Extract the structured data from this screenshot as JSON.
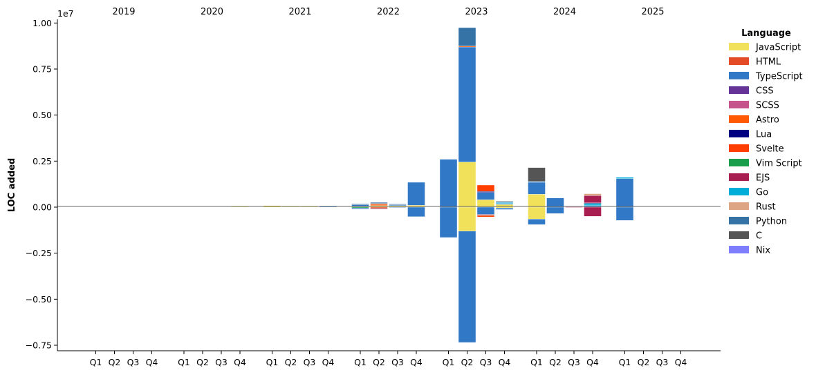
{
  "chart_data": {
    "type": "bar",
    "stacked": true,
    "ylabel": "LOC added",
    "y_offset_label": "1e7",
    "y_unit_multiplier": 10000000,
    "ylim": [
      -7.8,
      10.2
    ],
    "yticks": [
      -0.75,
      -0.5,
      -0.25,
      0.0,
      0.25,
      0.5,
      0.75,
      1.0
    ],
    "ytick_labels": [
      "−0.75",
      "−0.50",
      "−0.25",
      "0.00",
      "0.25",
      "0.50",
      "0.75",
      "1.00"
    ],
    "years": [
      "2019",
      "2020",
      "2021",
      "2022",
      "2023",
      "2024",
      "2025"
    ],
    "quarters": [
      "Q1",
      "Q2",
      "Q3",
      "Q4"
    ],
    "legend": {
      "title": "Language",
      "placement": "right",
      "entries": [
        {
          "name": "JavaScript",
          "color": "#f1e05a"
        },
        {
          "name": "HTML",
          "color": "#e34c26"
        },
        {
          "name": "TypeScript",
          "color": "#3178c6"
        },
        {
          "name": "CSS",
          "color": "#663399"
        },
        {
          "name": "SCSS",
          "color": "#c6538c"
        },
        {
          "name": "Astro",
          "color": "#ff5a03"
        },
        {
          "name": "Lua",
          "color": "#000080"
        },
        {
          "name": "Svelte",
          "color": "#ff3e00"
        },
        {
          "name": "Vim Script",
          "color": "#199f4b"
        },
        {
          "name": "EJS",
          "color": "#a91e50"
        },
        {
          "name": "Go",
          "color": "#00add8"
        },
        {
          "name": "Rust",
          "color": "#dea584"
        },
        {
          "name": "Python",
          "color": "#3572a5"
        },
        {
          "name": "C",
          "color": "#555555"
        },
        {
          "name": "Nix",
          "color": "#7e7eff"
        }
      ]
    },
    "units_note": "values are LOC in millions (axis shows 1e7 scale)",
    "bars": [
      {
        "year": "2020",
        "quarter": "Q4",
        "segments": [
          {
            "lang": "JavaScript",
            "value": 0.05
          }
        ]
      },
      {
        "year": "2021",
        "quarter": "Q1",
        "segments": [
          {
            "lang": "JavaScript",
            "value": 0.08
          }
        ]
      },
      {
        "year": "2021",
        "quarter": "Q2",
        "segments": [
          {
            "lang": "JavaScript",
            "value": 0.05
          }
        ]
      },
      {
        "year": "2021",
        "quarter": "Q3",
        "segments": [
          {
            "lang": "JavaScript",
            "value": 0.04
          }
        ]
      },
      {
        "year": "2021",
        "quarter": "Q4",
        "segments": [
          {
            "lang": "TypeScript",
            "value": 0.05
          }
        ]
      },
      {
        "year": "2022",
        "quarter": "Q1",
        "segments": [
          {
            "lang": "JavaScript",
            "value": 0.05
          },
          {
            "lang": "TypeScript",
            "value": 0.08
          },
          {
            "lang": "Python",
            "value": 0.05
          },
          {
            "lang": "Vim Script",
            "value": -0.05
          },
          {
            "lang": "TypeScript",
            "value": -0.06
          }
        ]
      },
      {
        "year": "2022",
        "quarter": "Q2",
        "segments": [
          {
            "lang": "JavaScript",
            "value": 0.08
          },
          {
            "lang": "Astro",
            "value": 0.07
          },
          {
            "lang": "HTML",
            "value": 0.05
          },
          {
            "lang": "Python",
            "value": 0.06
          },
          {
            "lang": "HTML",
            "value": -0.06
          },
          {
            "lang": "EJS",
            "value": -0.05
          }
        ]
      },
      {
        "year": "2022",
        "quarter": "Q3",
        "segments": [
          {
            "lang": "JavaScript",
            "value": 0.08
          },
          {
            "lang": "TypeScript",
            "value": 0.05
          },
          {
            "lang": "Python",
            "value": 0.04
          },
          {
            "lang": "TypeScript",
            "value": -0.03
          }
        ]
      },
      {
        "year": "2022",
        "quarter": "Q4",
        "segments": [
          {
            "lang": "JavaScript",
            "value": 0.1
          },
          {
            "lang": "TypeScript",
            "value": 1.25
          },
          {
            "lang": "TypeScript",
            "value": -0.52
          }
        ]
      },
      {
        "year": "2023",
        "quarter": "Q1",
        "segments": [
          {
            "lang": "TypeScript",
            "value": 2.6
          },
          {
            "lang": "TypeScript",
            "value": -1.65
          }
        ]
      },
      {
        "year": "2023",
        "quarter": "Q2",
        "segments": [
          {
            "lang": "JavaScript",
            "value": 2.45
          },
          {
            "lang": "TypeScript",
            "value": 6.25
          },
          {
            "lang": "Astro",
            "value": 0.05
          },
          {
            "lang": "Python",
            "value": 1.0
          },
          {
            "lang": "JavaScript",
            "value": -1.3
          },
          {
            "lang": "TypeScript",
            "value": -6.05
          }
        ]
      },
      {
        "year": "2023",
        "quarter": "Q3",
        "segments": [
          {
            "lang": "JavaScript",
            "value": 0.4
          },
          {
            "lang": "TypeScript",
            "value": 0.4
          },
          {
            "lang": "Lua",
            "value": 0.05
          },
          {
            "lang": "Svelte",
            "value": 0.35
          },
          {
            "lang": "TypeScript",
            "value": -0.4
          },
          {
            "lang": "HTML",
            "value": -0.08
          },
          {
            "lang": "Svelte",
            "value": -0.05
          }
        ]
      },
      {
        "year": "2023",
        "quarter": "Q4",
        "segments": [
          {
            "lang": "JavaScript",
            "value": 0.15
          },
          {
            "lang": "TypeScript",
            "value": 0.05
          },
          {
            "lang": "Go",
            "value": 0.05
          },
          {
            "lang": "Python",
            "value": 0.05
          },
          {
            "lang": "C",
            "value": 0.03
          },
          {
            "lang": "JavaScript",
            "value": -0.05
          },
          {
            "lang": "TypeScript",
            "value": -0.08
          }
        ]
      },
      {
        "year": "2024",
        "quarter": "Q1",
        "segments": [
          {
            "lang": "JavaScript",
            "value": 0.7
          },
          {
            "lang": "TypeScript",
            "value": 0.65
          },
          {
            "lang": "Python",
            "value": 0.05
          },
          {
            "lang": "C",
            "value": 0.75
          },
          {
            "lang": "JavaScript",
            "value": -0.65
          },
          {
            "lang": "TypeScript",
            "value": -0.3
          }
        ]
      },
      {
        "year": "2024",
        "quarter": "Q2",
        "segments": [
          {
            "lang": "TypeScript",
            "value": 0.5
          },
          {
            "lang": "TypeScript",
            "value": -0.35
          }
        ]
      },
      {
        "year": "2024",
        "quarter": "Q3",
        "segments": [
          {
            "lang": "EJS",
            "value": 0.03
          },
          {
            "lang": "EJS",
            "value": -0.02
          }
        ]
      },
      {
        "year": "2024",
        "quarter": "Q4",
        "segments": [
          {
            "lang": "TypeScript",
            "value": 0.08
          },
          {
            "lang": "Go",
            "value": 0.1
          },
          {
            "lang": "Python",
            "value": 0.05
          },
          {
            "lang": "EJS",
            "value": 0.4
          },
          {
            "lang": "Rust",
            "value": 0.1
          },
          {
            "lang": "EJS",
            "value": -0.5
          }
        ]
      },
      {
        "year": "2025",
        "quarter": "Q1",
        "segments": [
          {
            "lang": "TypeScript",
            "value": 1.55
          },
          {
            "lang": "Go",
            "value": 0.07
          },
          {
            "lang": "TypeScript",
            "value": -0.72
          }
        ]
      }
    ]
  }
}
